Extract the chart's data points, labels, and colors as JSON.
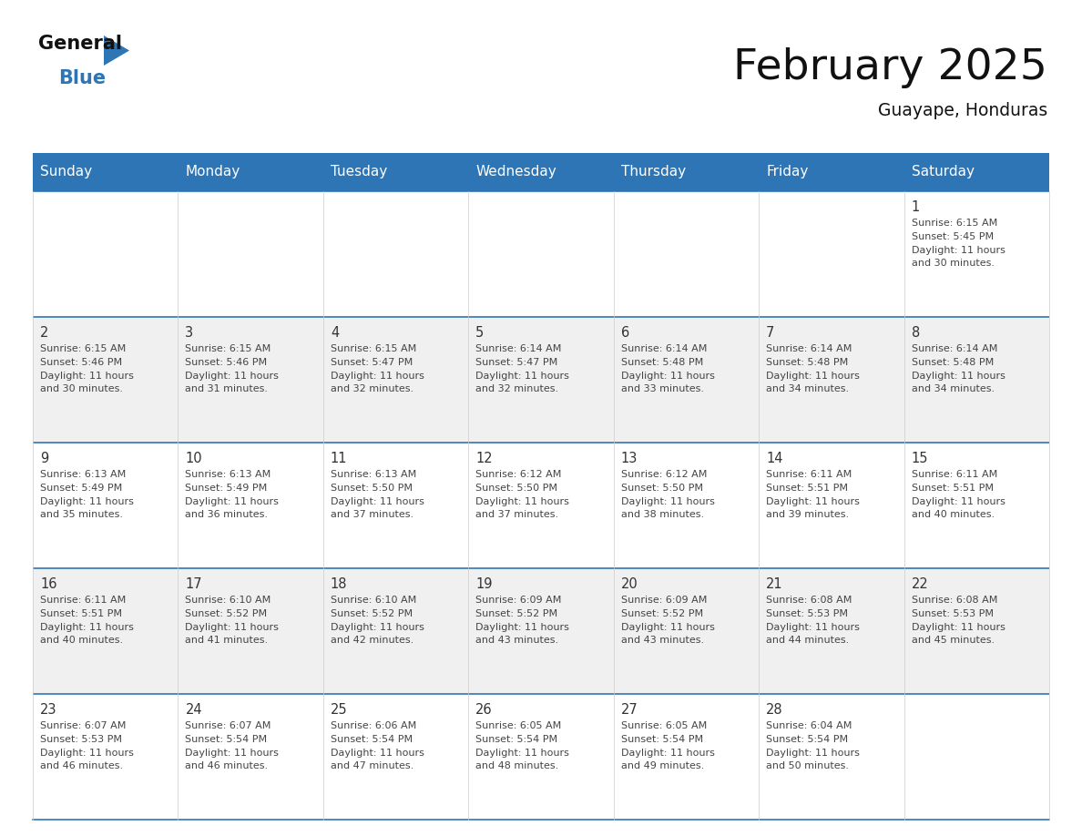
{
  "title": "February 2025",
  "subtitle": "Guayape, Honduras",
  "header_bg": "#2E75B6",
  "header_text_color": "#FFFFFF",
  "cell_bg_white": "#FFFFFF",
  "cell_bg_light": "#F0F0F0",
  "day_text_color": "#444444",
  "number_color": "#333333",
  "line_color": "#2E75B6",
  "separator_color": "#CCCCCC",
  "days_of_week": [
    "Sunday",
    "Monday",
    "Tuesday",
    "Wednesday",
    "Thursday",
    "Friday",
    "Saturday"
  ],
  "calendar": [
    [
      {
        "day": null
      },
      {
        "day": null
      },
      {
        "day": null
      },
      {
        "day": null
      },
      {
        "day": null
      },
      {
        "day": null
      },
      {
        "day": 1,
        "sunrise": "6:15 AM",
        "sunset": "5:45 PM",
        "daylight": "11 hours and 30 minutes."
      }
    ],
    [
      {
        "day": 2,
        "sunrise": "6:15 AM",
        "sunset": "5:46 PM",
        "daylight": "11 hours and 30 minutes."
      },
      {
        "day": 3,
        "sunrise": "6:15 AM",
        "sunset": "5:46 PM",
        "daylight": "11 hours and 31 minutes."
      },
      {
        "day": 4,
        "sunrise": "6:15 AM",
        "sunset": "5:47 PM",
        "daylight": "11 hours and 32 minutes."
      },
      {
        "day": 5,
        "sunrise": "6:14 AM",
        "sunset": "5:47 PM",
        "daylight": "11 hours and 32 minutes."
      },
      {
        "day": 6,
        "sunrise": "6:14 AM",
        "sunset": "5:48 PM",
        "daylight": "11 hours and 33 minutes."
      },
      {
        "day": 7,
        "sunrise": "6:14 AM",
        "sunset": "5:48 PM",
        "daylight": "11 hours and 34 minutes."
      },
      {
        "day": 8,
        "sunrise": "6:14 AM",
        "sunset": "5:48 PM",
        "daylight": "11 hours and 34 minutes."
      }
    ],
    [
      {
        "day": 9,
        "sunrise": "6:13 AM",
        "sunset": "5:49 PM",
        "daylight": "11 hours and 35 minutes."
      },
      {
        "day": 10,
        "sunrise": "6:13 AM",
        "sunset": "5:49 PM",
        "daylight": "11 hours and 36 minutes."
      },
      {
        "day": 11,
        "sunrise": "6:13 AM",
        "sunset": "5:50 PM",
        "daylight": "11 hours and 37 minutes."
      },
      {
        "day": 12,
        "sunrise": "6:12 AM",
        "sunset": "5:50 PM",
        "daylight": "11 hours and 37 minutes."
      },
      {
        "day": 13,
        "sunrise": "6:12 AM",
        "sunset": "5:50 PM",
        "daylight": "11 hours and 38 minutes."
      },
      {
        "day": 14,
        "sunrise": "6:11 AM",
        "sunset": "5:51 PM",
        "daylight": "11 hours and 39 minutes."
      },
      {
        "day": 15,
        "sunrise": "6:11 AM",
        "sunset": "5:51 PM",
        "daylight": "11 hours and 40 minutes."
      }
    ],
    [
      {
        "day": 16,
        "sunrise": "6:11 AM",
        "sunset": "5:51 PM",
        "daylight": "11 hours and 40 minutes."
      },
      {
        "day": 17,
        "sunrise": "6:10 AM",
        "sunset": "5:52 PM",
        "daylight": "11 hours and 41 minutes."
      },
      {
        "day": 18,
        "sunrise": "6:10 AM",
        "sunset": "5:52 PM",
        "daylight": "11 hours and 42 minutes."
      },
      {
        "day": 19,
        "sunrise": "6:09 AM",
        "sunset": "5:52 PM",
        "daylight": "11 hours and 43 minutes."
      },
      {
        "day": 20,
        "sunrise": "6:09 AM",
        "sunset": "5:52 PM",
        "daylight": "11 hours and 43 minutes."
      },
      {
        "day": 21,
        "sunrise": "6:08 AM",
        "sunset": "5:53 PM",
        "daylight": "11 hours and 44 minutes."
      },
      {
        "day": 22,
        "sunrise": "6:08 AM",
        "sunset": "5:53 PM",
        "daylight": "11 hours and 45 minutes."
      }
    ],
    [
      {
        "day": 23,
        "sunrise": "6:07 AM",
        "sunset": "5:53 PM",
        "daylight": "11 hours and 46 minutes."
      },
      {
        "day": 24,
        "sunrise": "6:07 AM",
        "sunset": "5:54 PM",
        "daylight": "11 hours and 46 minutes."
      },
      {
        "day": 25,
        "sunrise": "6:06 AM",
        "sunset": "5:54 PM",
        "daylight": "11 hours and 47 minutes."
      },
      {
        "day": 26,
        "sunrise": "6:05 AM",
        "sunset": "5:54 PM",
        "daylight": "11 hours and 48 minutes."
      },
      {
        "day": 27,
        "sunrise": "6:05 AM",
        "sunset": "5:54 PM",
        "daylight": "11 hours and 49 minutes."
      },
      {
        "day": 28,
        "sunrise": "6:04 AM",
        "sunset": "5:54 PM",
        "daylight": "11 hours and 50 minutes."
      },
      {
        "day": null
      }
    ]
  ]
}
